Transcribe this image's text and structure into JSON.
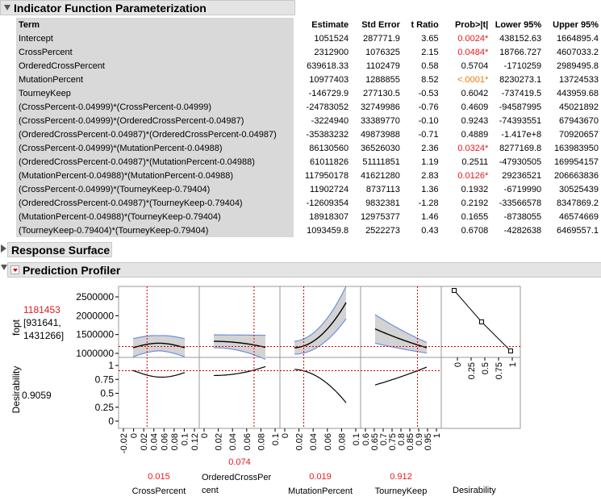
{
  "sections": {
    "indicator": "Indicator Function Parameterization",
    "response": "Response Surface",
    "profiler": "Prediction Profiler"
  },
  "table": {
    "headers": [
      "Term",
      "Estimate",
      "Std Error",
      "t Ratio",
      "Prob>|t|",
      "Lower 95%",
      "Upper 95%"
    ],
    "rows": [
      {
        "term": "Intercept",
        "est": "1051524",
        "se": "287771.9",
        "t": "3.65",
        "p": "0.0024*",
        "lo": "438152.63",
        "hi": "1664895.4",
        "sig": true
      },
      {
        "term": "CrossPercent",
        "est": "2312900",
        "se": "1076325",
        "t": "2.15",
        "p": "0.0484*",
        "lo": "18766.727",
        "hi": "4607033.2",
        "sig": true
      },
      {
        "term": "OrderedCrossPercent",
        "est": "639618.33",
        "se": "1102479",
        "t": "0.58",
        "p": "0.5704",
        "lo": "-1710259",
        "hi": "2989495.8",
        "sig": false
      },
      {
        "term": "MutationPercent",
        "est": "10977403",
        "se": "1288855",
        "t": "8.52",
        "p": "<.0001*",
        "lo": "8230273.1",
        "hi": "13724533",
        "sig": true,
        "small": true
      },
      {
        "term": "TourneyKeep",
        "est": "-146729.9",
        "se": "277130.5",
        "t": "-0.53",
        "p": "0.6042",
        "lo": "-737419.5",
        "hi": "443959.68",
        "sig": false
      },
      {
        "term": "(CrossPercent-0.04999)*(CrossPercent-0.04999)",
        "est": "-24783052",
        "se": "32749986",
        "t": "-0.76",
        "p": "0.4609",
        "lo": "-94587995",
        "hi": "45021892",
        "sig": false
      },
      {
        "term": "(CrossPercent-0.04999)*(OrderedCrossPercent-0.04987)",
        "est": "-3224940",
        "se": "33389770",
        "t": "-0.10",
        "p": "0.9243",
        "lo": "-74393551",
        "hi": "67943670",
        "sig": false
      },
      {
        "term": "(OrderedCrossPercent-0.04987)*(OrderedCrossPercent-0.04987)",
        "est": "-35383232",
        "se": "49873988",
        "t": "-0.71",
        "p": "0.4889",
        "lo": "-1.417e+8",
        "hi": "70920657",
        "sig": false
      },
      {
        "term": "(CrossPercent-0.04999)*(MutationPercent-0.04988)",
        "est": "86130560",
        "se": "36526030",
        "t": "2.36",
        "p": "0.0324*",
        "lo": "8277169.8",
        "hi": "163983950",
        "sig": true
      },
      {
        "term": "(OrderedCrossPercent-0.04987)*(MutationPercent-0.04988)",
        "est": "61011826",
        "se": "51111851",
        "t": "1.19",
        "p": "0.2511",
        "lo": "-47930505",
        "hi": "169954157",
        "sig": false
      },
      {
        "term": "(MutationPercent-0.04988)*(MutationPercent-0.04988)",
        "est": "117950178",
        "se": "41621280",
        "t": "2.83",
        "p": "0.0126*",
        "lo": "29236521",
        "hi": "206663836",
        "sig": true
      },
      {
        "term": "(CrossPercent-0.04999)*(TourneyKeep-0.79404)",
        "est": "11902724",
        "se": "8737113",
        "t": "1.36",
        "p": "0.1932",
        "lo": "-6719990",
        "hi": "30525439",
        "sig": false
      },
      {
        "term": "(OrderedCrossPercent-0.04987)*(TourneyKeep-0.79404)",
        "est": "-12609354",
        "se": "9832381",
        "t": "-1.28",
        "p": "0.2192",
        "lo": "-33566578",
        "hi": "8347869.2",
        "sig": false
      },
      {
        "term": "(MutationPercent-0.04988)*(TourneyKeep-0.79404)",
        "est": "18918307",
        "se": "12975377",
        "t": "1.46",
        "p": "0.1655",
        "lo": "-8738055",
        "hi": "46574669",
        "sig": false
      },
      {
        "term": "(TourneyKeep-0.79404)*(TourneyKeep-0.79404)",
        "est": "1093459.8",
        "se": "2522273",
        "t": "0.43",
        "p": "0.6708",
        "lo": "-4282638",
        "hi": "6469557.1",
        "sig": false
      }
    ]
  },
  "profiler": {
    "response_label": "fopt",
    "response_value": "1181453",
    "response_ci": "[931641,\n1431266]",
    "desir_label": "Desirability",
    "desir_value": "0.9059",
    "fopt_ticks": [
      "2500000",
      "2000000",
      "1500000",
      "1000000"
    ],
    "desir_ticks": [
      "1",
      "0.75",
      "0.5",
      "0.25",
      "0"
    ],
    "factors": [
      {
        "name": "CrossPercent",
        "value": "0.015",
        "ticks": [
          "-0.02",
          "0",
          "0.02",
          "0.04",
          "0.06",
          "0.08",
          "0.1",
          "0.12"
        ]
      },
      {
        "name": "OrderedCrossPer\ncent",
        "value": "0.074",
        "ticks": [
          "0",
          "0.02",
          "0.04",
          "0.06",
          "0.08",
          "0.1"
        ]
      },
      {
        "name": "MutationPercent",
        "value": "0.019",
        "ticks": [
          "0",
          "0.02",
          "0.04",
          "0.06",
          "0.08",
          "0.1"
        ]
      },
      {
        "name": "TourneyKeep",
        "value": "0.912",
        "ticks": [
          "0.6",
          "0.65",
          "0.7",
          "0.75",
          "0.8",
          "0.85",
          "0.9",
          "0.95",
          "1"
        ]
      }
    ],
    "desir_axis": {
      "name": "Desirability",
      "ticks": [
        "0",
        "0.25",
        "0.5",
        "0.75",
        "1"
      ]
    },
    "colors": {
      "curve": "#000000",
      "band": "#d3d3d3",
      "band_edge": "#6f8fe0",
      "ref": "#cc0000"
    }
  }
}
